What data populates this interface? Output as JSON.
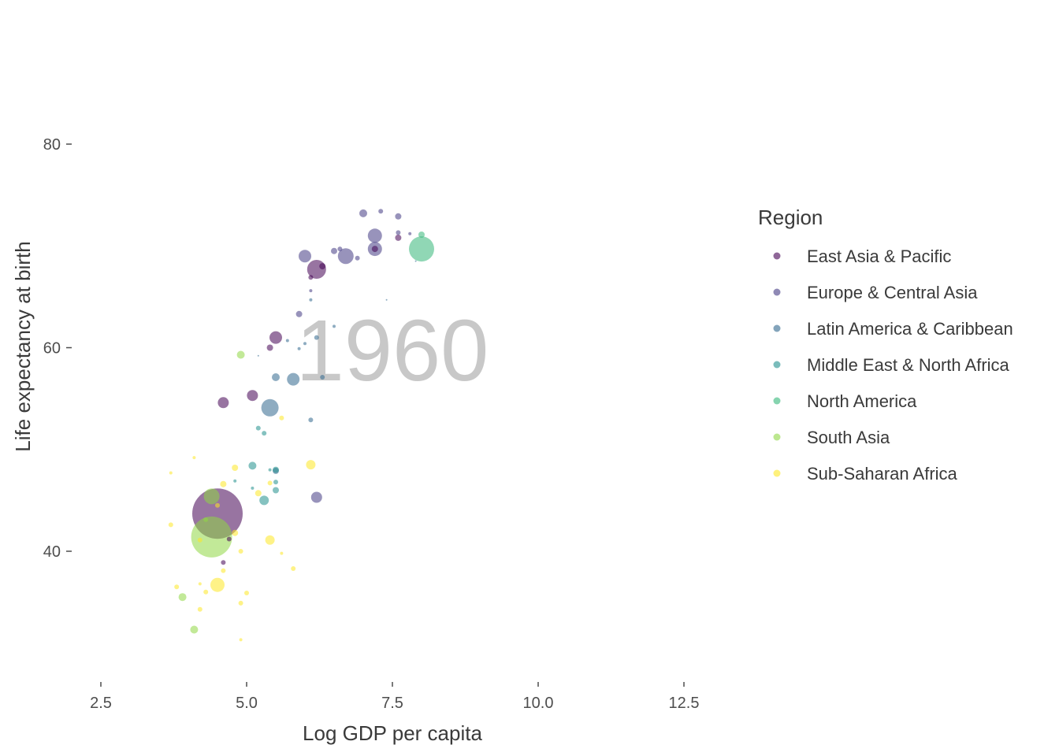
{
  "chart_data": {
    "type": "scatter",
    "xlabel": "Log GDP per capita",
    "ylabel": "Life expectancy at birth",
    "xlim": [
      1.5,
      14
    ],
    "ylim": [
      27.5,
      90
    ],
    "x_ticks": [
      2.5,
      5.0,
      7.5,
      10.0,
      12.5
    ],
    "x_tick_labels": [
      "2.5",
      "5.0",
      "7.5",
      "10.0",
      "12.5"
    ],
    "y_ticks": [
      40,
      60,
      80
    ],
    "y_tick_labels": [
      "40",
      "60",
      "80"
    ],
    "grid": false,
    "year_label": "1960",
    "legend": {
      "title": "Region",
      "placement": "right",
      "entries": [
        {
          "name": "East Asia & Pacific",
          "color": "#440154"
        },
        {
          "name": "Europe & Central Asia",
          "color": "#443a83"
        },
        {
          "name": "Latin America & Caribbean",
          "color": "#31688e"
        },
        {
          "name": "Middle East & North Africa",
          "color": "#21908d"
        },
        {
          "name": "North America",
          "color": "#35b779"
        },
        {
          "name": "South Asia",
          "color": "#8fd744"
        },
        {
          "name": "Sub-Saharan Africa",
          "color": "#fde725"
        }
      ]
    },
    "point_opacity": 0.55,
    "series": [
      {
        "name": "East Asia & Pacific",
        "color": "#440154",
        "points": [
          {
            "x": 4.5,
            "y": 43.7,
            "size": 32
          },
          {
            "x": 6.2,
            "y": 67.7,
            "size": 12
          },
          {
            "x": 6.3,
            "y": 68.0,
            "size": 4
          },
          {
            "x": 5.5,
            "y": 61.0,
            "size": 8
          },
          {
            "x": 5.1,
            "y": 55.3,
            "size": 7
          },
          {
            "x": 4.6,
            "y": 54.6,
            "size": 7
          },
          {
            "x": 5.4,
            "y": 60.0,
            "size": 4
          },
          {
            "x": 7.2,
            "y": 69.7,
            "size": 4
          },
          {
            "x": 7.6,
            "y": 70.8,
            "size": 4
          },
          {
            "x": 6.1,
            "y": 66.9,
            "size": 3
          },
          {
            "x": 4.6,
            "y": 38.9,
            "size": 3
          },
          {
            "x": 4.7,
            "y": 41.2,
            "size": 3
          }
        ]
      },
      {
        "name": "Europe & Central Asia",
        "color": "#443a83",
        "points": [
          {
            "x": 6.7,
            "y": 69.0,
            "size": 10
          },
          {
            "x": 7.2,
            "y": 71.0,
            "size": 9
          },
          {
            "x": 7.2,
            "y": 69.7,
            "size": 9
          },
          {
            "x": 6.0,
            "y": 69.0,
            "size": 8
          },
          {
            "x": 6.2,
            "y": 45.3,
            "size": 7
          },
          {
            "x": 7.0,
            "y": 73.2,
            "size": 5
          },
          {
            "x": 7.6,
            "y": 72.9,
            "size": 4
          },
          {
            "x": 6.9,
            "y": 68.8,
            "size": 3
          },
          {
            "x": 6.5,
            "y": 69.5,
            "size": 4
          },
          {
            "x": 7.3,
            "y": 73.4,
            "size": 3
          },
          {
            "x": 5.9,
            "y": 63.3,
            "size": 4
          },
          {
            "x": 6.6,
            "y": 69.7,
            "size": 3
          },
          {
            "x": 7.6,
            "y": 71.3,
            "size": 3
          },
          {
            "x": 7.8,
            "y": 71.2,
            "size": 2
          },
          {
            "x": 6.1,
            "y": 65.6,
            "size": 2
          }
        ]
      },
      {
        "name": "Latin America & Caribbean",
        "color": "#31688e",
        "points": [
          {
            "x": 5.4,
            "y": 54.1,
            "size": 11
          },
          {
            "x": 5.8,
            "y": 56.9,
            "size": 8
          },
          {
            "x": 5.5,
            "y": 57.1,
            "size": 5
          },
          {
            "x": 6.3,
            "y": 57.1,
            "size": 3
          },
          {
            "x": 6.1,
            "y": 52.9,
            "size": 3
          },
          {
            "x": 5.5,
            "y": 47.9,
            "size": 4
          },
          {
            "x": 6.2,
            "y": 61.0,
            "size": 3
          },
          {
            "x": 5.9,
            "y": 59.9,
            "size": 2
          },
          {
            "x": 6.0,
            "y": 60.4,
            "size": 2
          },
          {
            "x": 6.1,
            "y": 64.7,
            "size": 2
          },
          {
            "x": 5.7,
            "y": 60.7,
            "size": 2
          },
          {
            "x": 6.5,
            "y": 62.1,
            "size": 2
          },
          {
            "x": 7.4,
            "y": 64.7,
            "size": 1
          },
          {
            "x": 7.9,
            "y": 68.5,
            "size": 1
          },
          {
            "x": 5.2,
            "y": 59.2,
            "size": 1
          }
        ]
      },
      {
        "name": "Middle East & North Africa",
        "color": "#21908d",
        "points": [
          {
            "x": 5.1,
            "y": 48.4,
            "size": 5
          },
          {
            "x": 5.3,
            "y": 45.0,
            "size": 6
          },
          {
            "x": 5.5,
            "y": 46.0,
            "size": 4
          },
          {
            "x": 5.5,
            "y": 48.0,
            "size": 4
          },
          {
            "x": 5.2,
            "y": 52.1,
            "size": 3
          },
          {
            "x": 5.3,
            "y": 51.6,
            "size": 3
          },
          {
            "x": 5.5,
            "y": 46.8,
            "size": 3
          },
          {
            "x": 4.8,
            "y": 46.9,
            "size": 2
          },
          {
            "x": 5.1,
            "y": 46.2,
            "size": 2
          },
          {
            "x": 5.4,
            "y": 48.0,
            "size": 2
          }
        ]
      },
      {
        "name": "North America",
        "color": "#35b779",
        "points": [
          {
            "x": 8.0,
            "y": 69.7,
            "size": 16
          },
          {
            "x": 8.0,
            "y": 71.1,
            "size": 4
          }
        ]
      },
      {
        "name": "South Asia",
        "color": "#8fd744",
        "points": [
          {
            "x": 4.4,
            "y": 41.4,
            "size": 26
          },
          {
            "x": 4.4,
            "y": 45.4,
            "size": 10
          },
          {
            "x": 4.9,
            "y": 59.3,
            "size": 5
          },
          {
            "x": 3.9,
            "y": 35.5,
            "size": 5
          },
          {
            "x": 4.1,
            "y": 32.3,
            "size": 5
          },
          {
            "x": 4.3,
            "y": 43.1,
            "size": 3
          }
        ]
      },
      {
        "name": "Sub-Saharan Africa",
        "color": "#fde725",
        "points": [
          {
            "x": 4.5,
            "y": 36.7,
            "size": 9
          },
          {
            "x": 6.1,
            "y": 48.5,
            "size": 6
          },
          {
            "x": 5.4,
            "y": 41.1,
            "size": 6
          },
          {
            "x": 4.8,
            "y": 48.2,
            "size": 4
          },
          {
            "x": 4.6,
            "y": 46.6,
            "size": 4
          },
          {
            "x": 5.2,
            "y": 45.7,
            "size": 4
          },
          {
            "x": 4.8,
            "y": 41.8,
            "size": 4
          },
          {
            "x": 4.9,
            "y": 40.0,
            "size": 3
          },
          {
            "x": 4.5,
            "y": 44.5,
            "size": 3
          },
          {
            "x": 4.2,
            "y": 41.1,
            "size": 3
          },
          {
            "x": 4.3,
            "y": 36.0,
            "size": 3
          },
          {
            "x": 3.8,
            "y": 36.5,
            "size": 3
          },
          {
            "x": 4.2,
            "y": 34.3,
            "size": 3
          },
          {
            "x": 4.6,
            "y": 38.1,
            "size": 3
          },
          {
            "x": 5.8,
            "y": 38.3,
            "size": 3
          },
          {
            "x": 3.7,
            "y": 42.6,
            "size": 3
          },
          {
            "x": 3.7,
            "y": 47.7,
            "size": 2
          },
          {
            "x": 4.1,
            "y": 49.2,
            "size": 2
          },
          {
            "x": 4.9,
            "y": 34.9,
            "size": 3
          },
          {
            "x": 4.9,
            "y": 31.3,
            "size": 2
          },
          {
            "x": 5.0,
            "y": 35.9,
            "size": 3
          },
          {
            "x": 5.6,
            "y": 53.1,
            "size": 3
          },
          {
            "x": 5.4,
            "y": 46.7,
            "size": 3
          },
          {
            "x": 5.6,
            "y": 39.8,
            "size": 2
          },
          {
            "x": 4.2,
            "y": 36.8,
            "size": 2
          }
        ]
      }
    ]
  }
}
